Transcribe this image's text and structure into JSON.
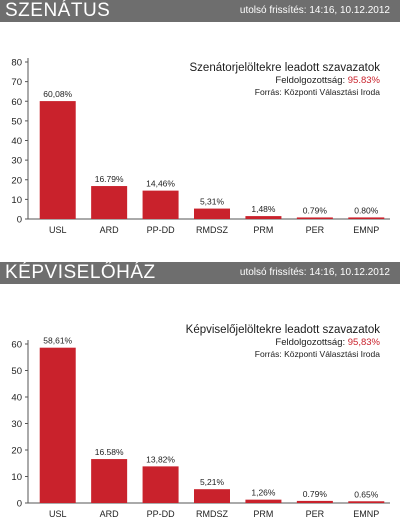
{
  "sections": [
    {
      "banner_title": "SZENÁTUS",
      "update": "utolsó frissítés: 14:16, 10.12.2012",
      "info_title": "Szenátorjelöltekre leadott szavazatok",
      "progress_label": "Feldolgozottság:",
      "progress_value": "95.83%",
      "source": "Forrás: Központi Választási Iroda"
    },
    {
      "banner_title": "KÉPVISELŐHÁZ",
      "update": "utolsó frissítés: 14:16, 10.12.2012",
      "info_title": "Képviselőjelöltekre leadott szavazatok",
      "progress_label": "Feldolgozottság:",
      "progress_value": "95,83%",
      "source": "Forrás: Központi Választási Iroda"
    }
  ],
  "colors": {
    "bar": "#c9222c",
    "banner": "#6e6e6e",
    "accent": "#c9222c"
  },
  "chart_data": [
    {
      "type": "bar",
      "title": "Szenátorjelöltekre leadott szavazatok",
      "categories": [
        "USL",
        "ARD",
        "PP-DD",
        "RMDSZ",
        "PRM",
        "PER",
        "EMNP"
      ],
      "values": [
        60.08,
        16.79,
        14.46,
        5.31,
        1.48,
        0.79,
        0.8
      ],
      "value_labels": [
        "60,08%",
        "16.79%",
        "14,46%",
        "5,31%",
        "1,48%",
        "0.79%",
        "0.80%"
      ],
      "yticks": [
        "0",
        "10",
        "20",
        "30",
        "40",
        "50",
        "60",
        "70",
        "80"
      ],
      "ylim": [
        0,
        80
      ],
      "grid": false,
      "xlabel": "",
      "ylabel": ""
    },
    {
      "type": "bar",
      "title": "Képviselőjelöltekre leadott szavazatok",
      "categories": [
        "USL",
        "ARD",
        "PP-DD",
        "RMDSZ",
        "PRM",
        "PER",
        "EMNP"
      ],
      "values": [
        58.61,
        16.58,
        13.82,
        5.21,
        1.26,
        0.79,
        0.65
      ],
      "value_labels": [
        "58,61%",
        "16.58%",
        "13,82%",
        "5,21%",
        "1,26%",
        "0.79%",
        "0.65%"
      ],
      "yticks": [
        "0",
        "10",
        "20",
        "30",
        "40",
        "50",
        "60"
      ],
      "ylim": [
        0,
        60
      ],
      "grid": false,
      "xlabel": "",
      "ylabel": ""
    }
  ]
}
